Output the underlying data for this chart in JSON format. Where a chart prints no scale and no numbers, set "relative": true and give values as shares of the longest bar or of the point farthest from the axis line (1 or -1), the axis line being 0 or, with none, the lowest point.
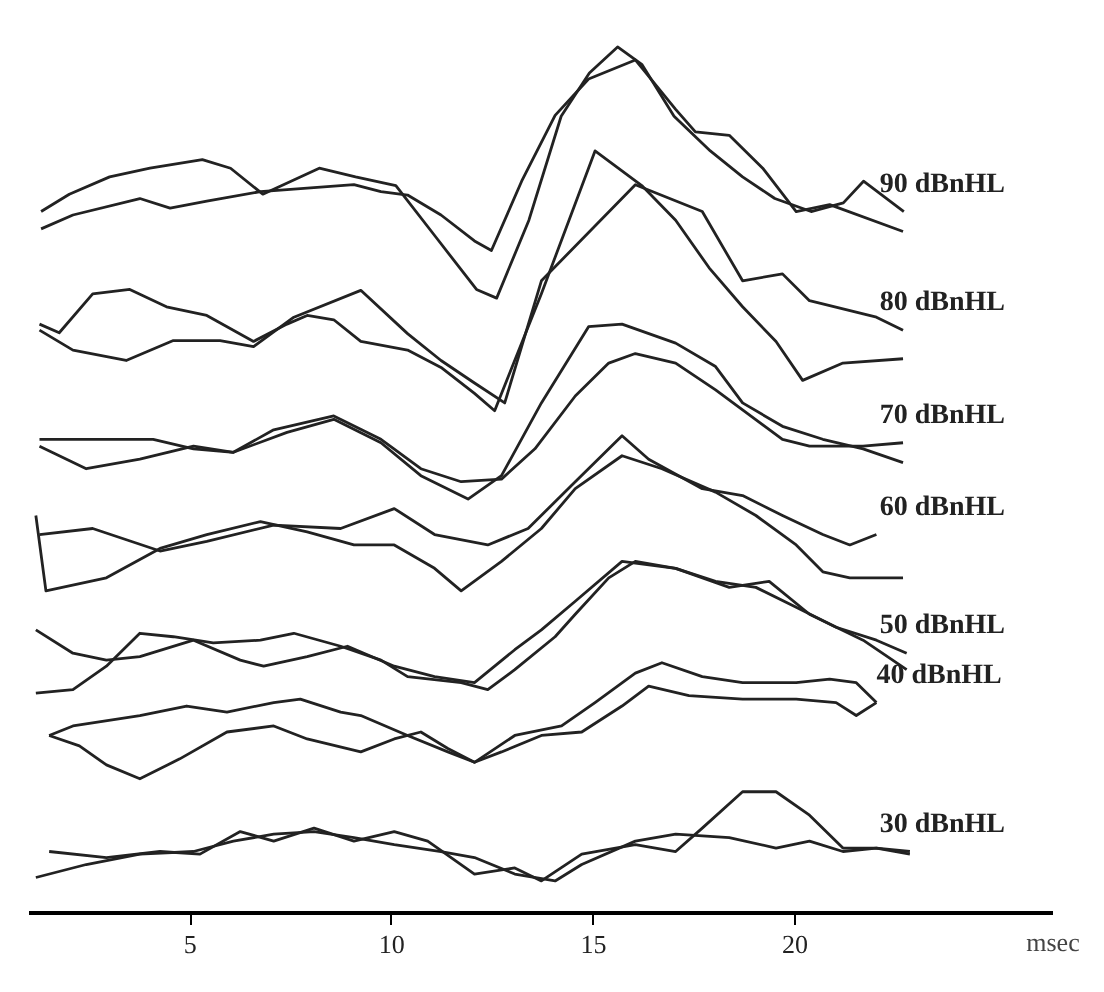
{
  "chart_data": {
    "type": "line",
    "relative": true,
    "xlabel": "msec",
    "xlim": [
      1,
      26.4
    ],
    "xticks": [
      5,
      10,
      15,
      20
    ],
    "marker": "none",
    "line_style": "solid",
    "series": [
      {
        "name": "90 dBnHL",
        "color": "#222222",
        "x": [
          1.3,
          2.0,
          3.0,
          4.0,
          5.3,
          6.0,
          6.8,
          8.2,
          9.1,
          10.1,
          11.1,
          12.1,
          12.6,
          13.4,
          14.2,
          14.9,
          15.6,
          16.2,
          17.0,
          17.9,
          18.7,
          19.5,
          20.4,
          21.2,
          21.7,
          22.7
        ],
        "values": [
          0.81,
          0.83,
          0.85,
          0.86,
          0.87,
          0.86,
          0.83,
          0.86,
          0.85,
          0.84,
          0.78,
          0.72,
          0.71,
          0.8,
          0.92,
          0.97,
          1.0,
          0.98,
          0.92,
          0.88,
          0.85,
          0.825,
          0.81,
          0.82,
          0.845,
          0.81
        ]
      },
      {
        "color": "#222222",
        "x": [
          1.3,
          2.09,
          3.75,
          4.5,
          5.41,
          6.74,
          7.9,
          9.06,
          9.73,
          10.39,
          11.22,
          12.05,
          12.47,
          13.22,
          14.05,
          14.88,
          16.04,
          17.04,
          17.53,
          18.37,
          19.2,
          20.03,
          20.86,
          22.68
        ],
        "values": [
          0.79,
          0.806,
          0.825,
          0.814,
          0.822,
          0.833,
          0.837,
          0.841,
          0.833,
          0.829,
          0.806,
          0.776,
          0.765,
          0.845,
          0.921,
          0.963,
          0.985,
          0.928,
          0.902,
          0.898,
          0.86,
          0.81,
          0.818,
          0.787
        ]
      },
      {
        "name": "80 dBnHL",
        "color": "#222222",
        "x": [
          1.26,
          1.75,
          2.58,
          3.5,
          4.41,
          5.41,
          6.57,
          7.4,
          7.9,
          8.56,
          9.23,
          10.39,
          11.22,
          12.05,
          12.55,
          13.71,
          15.04,
          16.2,
          17.04,
          17.87,
          18.7,
          19.53,
          20.19,
          21.19,
          22.68
        ],
        "values": [
          0.68,
          0.67,
          0.715,
          0.72,
          0.7,
          0.69,
          0.66,
          0.68,
          0.69,
          0.685,
          0.66,
          0.65,
          0.63,
          0.6,
          0.58,
          0.715,
          0.88,
          0.84,
          0.8,
          0.745,
          0.7,
          0.66,
          0.615,
          0.635,
          0.64
        ]
      },
      {
        "color": "#222222",
        "x": [
          1.26,
          2.09,
          3.41,
          4.58,
          5.74,
          6.57,
          7.57,
          9.23,
          10.39,
          11.22,
          12.05,
          12.8,
          13.71,
          16.04,
          17.7,
          18.7,
          19.69,
          20.36,
          22.02,
          22.68
        ],
        "values": [
          0.673,
          0.65,
          0.638,
          0.661,
          0.661,
          0.654,
          0.688,
          0.719,
          0.669,
          0.638,
          0.612,
          0.589,
          0.73,
          0.841,
          0.81,
          0.73,
          0.738,
          0.707,
          0.688,
          0.673
        ]
      },
      {
        "name": "70 dBnHL",
        "color": "#222222",
        "x": [
          1.26,
          2.42,
          4.08,
          5.08,
          6.07,
          7.07,
          8.56,
          9.73,
          10.72,
          11.72,
          12.72,
          13.55,
          14.55,
          15.38,
          16.04,
          17.04,
          18.03,
          18.7,
          19.69,
          20.36,
          21.69,
          22.68
        ],
        "values": [
          0.547,
          0.547,
          0.547,
          0.536,
          0.532,
          0.558,
          0.574,
          0.547,
          0.513,
          0.498,
          0.501,
          0.536,
          0.597,
          0.635,
          0.646,
          0.635,
          0.604,
          0.581,
          0.547,
          0.539,
          0.539,
          0.543
        ]
      },
      {
        "color": "#222222",
        "x": [
          1.26,
          2.42,
          3.75,
          5.08,
          6.07,
          7.4,
          8.56,
          9.73,
          10.72,
          11.89,
          12.72,
          13.71,
          14.88,
          15.71,
          17.04,
          18.03,
          18.7,
          19.69,
          20.69,
          21.69,
          22.68
        ],
        "values": [
          0.539,
          0.513,
          0.524,
          0.539,
          0.532,
          0.555,
          0.57,
          0.543,
          0.505,
          0.478,
          0.505,
          0.589,
          0.677,
          0.68,
          0.658,
          0.631,
          0.589,
          0.562,
          0.547,
          0.536,
          0.52
        ]
      },
      {
        "name": "60 dBnHL",
        "color": "#222222",
        "x": [
          1.26,
          2.58,
          4.25,
          5.41,
          7.07,
          8.73,
          10.06,
          11.06,
          12.38,
          13.38,
          14.55,
          15.71,
          16.37,
          17.7,
          18.7,
          19.69,
          20.69,
          21.36,
          22.02
        ],
        "values": [
          0.437,
          0.444,
          0.418,
          0.429,
          0.448,
          0.444,
          0.467,
          0.437,
          0.425,
          0.444,
          0.498,
          0.551,
          0.524,
          0.49,
          0.482,
          0.459,
          0.437,
          0.425,
          0.437
        ]
      },
      {
        "color": "#222222",
        "x": [
          1.17,
          1.42,
          2.92,
          4.25,
          5.41,
          6.74,
          7.9,
          9.06,
          10.06,
          11.06,
          11.72,
          12.72,
          13.71,
          14.55,
          15.71,
          16.7,
          18.03,
          19.03,
          20.03,
          20.69,
          21.36,
          22.68
        ],
        "values": [
          0.459,
          0.372,
          0.387,
          0.421,
          0.437,
          0.452,
          0.44,
          0.425,
          0.425,
          0.398,
          0.372,
          0.406,
          0.444,
          0.49,
          0.528,
          0.513,
          0.486,
          0.459,
          0.425,
          0.394,
          0.387,
          0.387
        ]
      },
      {
        "name": "50 dBnHL",
        "color": "#222222",
        "x": [
          1.17,
          2.09,
          2.92,
          3.75,
          5.08,
          6.24,
          6.82,
          7.9,
          8.9,
          10.06,
          11.06,
          12.05,
          13.05,
          13.71,
          14.55,
          15.71,
          17.04,
          18.37,
          19.36,
          20.36,
          21.69,
          22.77
        ],
        "values": [
          0.327,
          0.3,
          0.292,
          0.296,
          0.315,
          0.292,
          0.285,
          0.296,
          0.308,
          0.285,
          0.273,
          0.266,
          0.304,
          0.327,
          0.36,
          0.406,
          0.398,
          0.376,
          0.383,
          0.345,
          0.315,
          0.281
        ]
      },
      {
        "color": "#222222",
        "x": [
          1.17,
          2.09,
          2.92,
          3.75,
          4.58,
          5.57,
          6.74,
          7.57,
          8.73,
          9.73,
          10.39,
          11.72,
          12.38,
          13.05,
          14.05,
          14.55,
          15.38,
          16.04,
          17.04,
          18.03,
          19.03,
          20.03,
          21.02,
          22.02,
          22.77
        ],
        "values": [
          0.254,
          0.258,
          0.285,
          0.323,
          0.319,
          0.312,
          0.315,
          0.323,
          0.308,
          0.292,
          0.273,
          0.266,
          0.258,
          0.281,
          0.319,
          0.345,
          0.387,
          0.406,
          0.398,
          0.383,
          0.376,
          0.353,
          0.33,
          0.315,
          0.3
        ]
      },
      {
        "name": "40 dBnHL",
        "color": "#222222",
        "x": [
          1.5,
          2.09,
          3.75,
          4.91,
          5.91,
          7.07,
          7.73,
          8.73,
          9.23,
          10.39,
          11.39,
          12.05,
          13.05,
          14.21,
          15.04,
          16.04,
          16.7,
          17.7,
          18.7,
          20.03,
          20.86,
          21.52,
          22.02
        ],
        "values": [
          0.205,
          0.216,
          0.228,
          0.239,
          0.232,
          0.243,
          0.247,
          0.232,
          0.228,
          0.205,
          0.186,
          0.174,
          0.205,
          0.216,
          0.243,
          0.277,
          0.289,
          0.273,
          0.266,
          0.266,
          0.27,
          0.266,
          0.243
        ]
      },
      {
        "color": "#222222",
        "x": [
          1.5,
          2.25,
          2.92,
          3.75,
          4.74,
          5.91,
          7.07,
          7.9,
          9.23,
          10.06,
          10.72,
          11.39,
          12.05,
          12.72,
          13.71,
          14.71,
          15.71,
          16.37,
          17.37,
          18.7,
          20.03,
          21.02,
          21.52,
          22.02
        ],
        "values": [
          0.205,
          0.193,
          0.171,
          0.155,
          0.178,
          0.209,
          0.216,
          0.201,
          0.186,
          0.201,
          0.209,
          0.19,
          0.174,
          0.186,
          0.205,
          0.209,
          0.239,
          0.262,
          0.251,
          0.247,
          0.247,
          0.243,
          0.228,
          0.243
        ]
      },
      {
        "name": "30 dBnHL",
        "color": "#222222",
        "x": [
          1.5,
          2.92,
          4.25,
          5.24,
          6.24,
          7.07,
          8.07,
          9.06,
          10.06,
          10.89,
          12.05,
          13.05,
          13.71,
          14.71,
          16.04,
          17.04,
          17.7,
          18.7,
          19.53,
          20.36,
          21.19,
          22.02,
          22.85
        ],
        "values": [
          0.071,
          0.064,
          0.071,
          0.068,
          0.094,
          0.083,
          0.098,
          0.083,
          0.094,
          0.083,
          0.045,
          0.052,
          0.037,
          0.068,
          0.079,
          0.071,
          0.098,
          0.14,
          0.14,
          0.113,
          0.075,
          0.075,
          0.068
        ]
      },
      {
        "color": "#222222",
        "x": [
          1.17,
          2.42,
          3.75,
          5.08,
          6.07,
          7.07,
          8.07,
          9.06,
          10.06,
          11.22,
          12.05,
          13.05,
          14.05,
          14.71,
          16.04,
          17.04,
          18.37,
          19.53,
          20.36,
          21.19,
          22.02,
          22.85
        ],
        "values": [
          0.041,
          0.056,
          0.068,
          0.071,
          0.083,
          0.091,
          0.094,
          0.087,
          0.079,
          0.071,
          0.064,
          0.045,
          0.037,
          0.056,
          0.083,
          0.091,
          0.087,
          0.075,
          0.083,
          0.071,
          0.075,
          0.071
        ]
      }
    ]
  }
}
